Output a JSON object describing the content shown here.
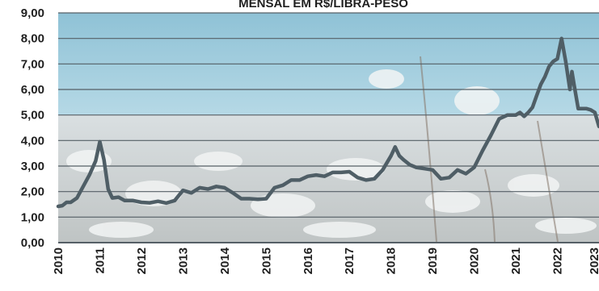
{
  "chart_data": {
    "type": "line",
    "title": "MENSAL EM R$/LIBRA-PESO",
    "xlabel": "",
    "ylabel": "",
    "ylim": [
      0,
      9
    ],
    "xlim": [
      2010,
      2023
    ],
    "yticks": [
      "0,00",
      "1,00",
      "2,00",
      "3,00",
      "4,00",
      "5,00",
      "6,00",
      "7,00",
      "8,00",
      "9,00"
    ],
    "xticks": [
      "2010",
      "2011",
      "2012",
      "2013",
      "2014",
      "2015",
      "2016",
      "2017",
      "2018",
      "2019",
      "2020",
      "2021",
      "2022",
      "2023"
    ],
    "grid": true,
    "background": "cotton field photograph",
    "colors": {
      "line": "#4f5e66",
      "grid": "#555f66",
      "text": "#1f1f1f"
    },
    "series": [
      {
        "x": [
          2010.0,
          2010.1,
          2010.2,
          2010.3,
          2010.45,
          2010.6,
          2010.75,
          2010.9,
          2011.0,
          2011.1,
          2011.2,
          2011.3,
          2011.45,
          2011.6,
          2011.8,
          2012.0,
          2012.2,
          2012.4,
          2012.6,
          2012.8,
          2013.0,
          2013.2,
          2013.4,
          2013.6,
          2013.8,
          2014.0,
          2014.2,
          2014.4,
          2014.6,
          2014.8,
          2015.0,
          2015.2,
          2015.4,
          2015.6,
          2015.8,
          2016.0,
          2016.2,
          2016.4,
          2016.6,
          2016.8,
          2017.0,
          2017.2,
          2017.4,
          2017.6,
          2017.8,
          2018.0,
          2018.1,
          2018.2,
          2018.3,
          2018.45,
          2018.6,
          2018.8,
          2019.0,
          2019.2,
          2019.4,
          2019.6,
          2019.8,
          2020.0,
          2020.2,
          2020.4,
          2020.6,
          2020.8,
          2021.0,
          2021.1,
          2021.2,
          2021.3,
          2021.4,
          2021.5,
          2021.6,
          2021.7,
          2021.8,
          2021.9,
          2022.0,
          2022.1,
          2022.2,
          2022.3,
          2022.35,
          2022.4,
          2022.5,
          2022.6,
          2022.7,
          2022.8,
          2022.9,
          2023.0
        ],
        "y": [
          1.42,
          1.45,
          1.58,
          1.58,
          1.75,
          2.2,
          2.65,
          3.2,
          3.95,
          3.25,
          2.1,
          1.75,
          1.78,
          1.65,
          1.65,
          1.58,
          1.56,
          1.62,
          1.55,
          1.65,
          2.05,
          1.95,
          2.15,
          2.1,
          2.2,
          2.15,
          1.95,
          1.72,
          1.72,
          1.7,
          1.72,
          2.15,
          2.25,
          2.45,
          2.45,
          2.6,
          2.65,
          2.6,
          2.75,
          2.75,
          2.78,
          2.55,
          2.45,
          2.5,
          2.85,
          3.4,
          3.75,
          3.4,
          3.25,
          3.05,
          2.95,
          2.9,
          2.85,
          2.5,
          2.55,
          2.85,
          2.7,
          2.95,
          3.6,
          4.2,
          4.85,
          5.0,
          5.0,
          5.1,
          4.95,
          5.1,
          5.3,
          5.75,
          6.2,
          6.5,
          6.9,
          7.1,
          7.2,
          8.0,
          7.1,
          6.0,
          6.7,
          6.2,
          5.25,
          5.25,
          5.25,
          5.2,
          5.1,
          4.55
        ]
      }
    ]
  }
}
